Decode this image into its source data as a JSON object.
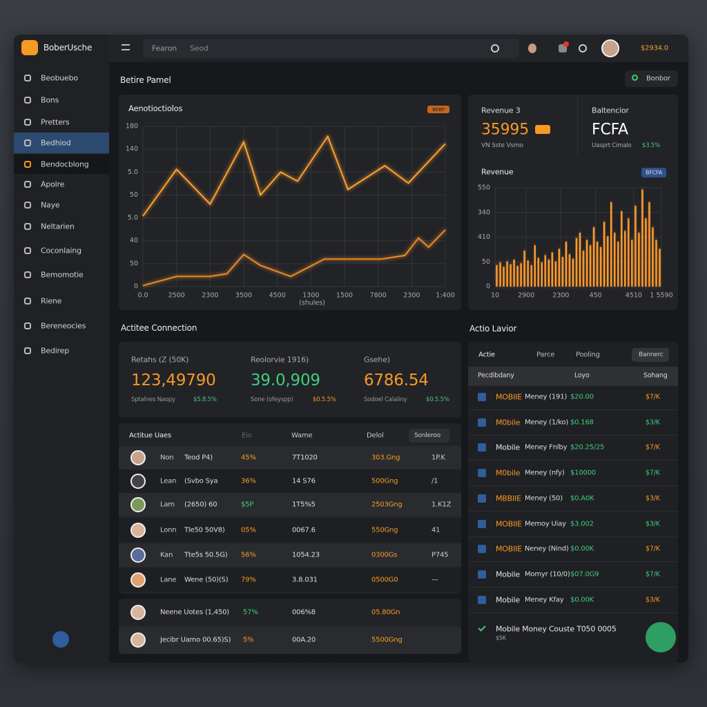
{
  "header": {
    "brand": "BoberUsche",
    "search_placeholder": "Fearon",
    "search_hint": "Seod",
    "balance": "$2934.0"
  },
  "sidebar": {
    "items": [
      "Beobuebo",
      "Bons",
      "Pretters",
      "Bedhiod",
      "Bendocblong",
      "Apolre",
      "Naye",
      "Neltarien",
      "Coconlaing",
      "Bemomotie",
      "Riene",
      "Bereneocies",
      "Bedirep"
    ],
    "active": 3,
    "accent": 4
  },
  "page": {
    "title": "Betire Pamel",
    "action": "Bonbor"
  },
  "summary": {
    "revenue_label": "Revenue 3",
    "revenue_value": "35995",
    "revenue_sub": "VN Sste Vsmo",
    "balance_label": "Baltencior",
    "balance_value": "FCFA",
    "balance_sub": "Uasprt Cimalo",
    "balance_change": "$3.5%"
  },
  "chart_data": [
    {
      "type": "line",
      "title": "Aenotioctiolos",
      "badge": "BEBP",
      "xlabel": "(shules)",
      "grid": true,
      "xlim": [
        0,
        9
      ],
      "xticks": [
        {
          "value": 0,
          "label": "0.0"
        },
        {
          "value": 1,
          "label": "2500"
        },
        {
          "value": 2,
          "label": "2300"
        },
        {
          "value": 3,
          "label": "3500"
        },
        {
          "value": 4,
          "label": "4500"
        },
        {
          "value": 5,
          "label": "1300"
        },
        {
          "value": 6,
          "label": "1500"
        },
        {
          "value": 7,
          "label": "7800"
        },
        {
          "value": 8,
          "label": "2300"
        },
        {
          "value": 9,
          "label": "1:400"
        }
      ],
      "ylim": [
        0,
        175
      ],
      "yticks": [
        0,
        {
          "value": 25,
          "label": "50"
        },
        {
          "value": 50,
          "label": "40"
        },
        {
          "value": 75,
          "label": "5.0"
        },
        {
          "value": 100,
          "label": "50"
        },
        {
          "value": 125,
          "label": "5.0"
        },
        {
          "value": 150,
          "label": "140"
        },
        {
          "value": 175,
          "label": "180"
        }
      ],
      "series": [
        {
          "color": "#ffa02e",
          "x": [
            0,
            1,
            2,
            3,
            3.5,
            4.1,
            4.6,
            5.5,
            6.1,
            7.2,
            7.9,
            9
          ],
          "values": [
            77,
            128,
            90,
            158,
            100,
            125,
            115,
            164,
            106,
            132,
            113,
            156
          ]
        },
        {
          "color": "#e8892a",
          "x": [
            0,
            1,
            2,
            2.5,
            3,
            3.5,
            4.4,
            5.4,
            7.1,
            7.8,
            8.2,
            8.5,
            9
          ],
          "values": [
            1,
            11,
            11,
            14,
            35,
            23,
            11,
            30,
            30,
            34,
            53,
            43,
            62
          ]
        }
      ]
    },
    {
      "type": "bar",
      "title": "Revenue",
      "badge": "BFCFA",
      "color": "#ff9a2a",
      "grid": true,
      "xlim": [
        0,
        48
      ],
      "xticks": [
        {
          "value": 0,
          "label": "10"
        },
        {
          "value": 9,
          "label": "2900"
        },
        {
          "value": 19,
          "label": "2300"
        },
        {
          "value": 29,
          "label": "450"
        },
        {
          "value": 40,
          "label": "4510"
        },
        {
          "value": 48,
          "label": "1 5590"
        }
      ],
      "ylim": [
        0,
        550
      ],
      "yticks": [
        0,
        {
          "value": 137.5,
          "label": "50"
        },
        {
          "value": 275,
          "label": "410"
        },
        {
          "value": 412.5,
          "label": "340"
        },
        550
      ],
      "values": [
        120,
        135,
        110,
        140,
        125,
        150,
        115,
        130,
        200,
        145,
        120,
        230,
        160,
        135,
        175,
        150,
        190,
        140,
        210,
        165,
        250,
        180,
        155,
        270,
        300,
        200,
        260,
        230,
        330,
        250,
        220,
        360,
        280,
        470,
        300,
        250,
        420,
        310,
        380,
        260,
        450,
        300,
        540,
        380,
        470,
        330,
        260,
        210
      ]
    }
  ],
  "connections": {
    "title": "Actitee Connection",
    "stats": [
      {
        "label": "Retahs (Z (50K)",
        "value": "123,49790",
        "sub": "Sptalnes Naopy",
        "change": "$5.8.5%"
      },
      {
        "label": "Reolorvie 1916)",
        "value": "39.0,909",
        "sub": "Sone (ofeyspp)",
        "change": "$0.5.5%"
      },
      {
        "label": "Gsehe)",
        "value": "6786.54",
        "sub": "Sodoel Calaliny",
        "change": "$0.5.5%"
      }
    ]
  },
  "users": {
    "title": "Actitue Uaes",
    "columns": [
      "Eio",
      "Wame",
      "Delol"
    ],
    "action": "Sonleroo",
    "rows": [
      [
        "Non",
        "Teod P4)",
        "45%",
        "7T1020",
        "303.Gng",
        "1P.K"
      ],
      [
        "Lean",
        "(Svbo Sya",
        "36%",
        "14 S76",
        "500Gng",
        "/1"
      ],
      [
        "Lam",
        "(2650) 60",
        "$5P",
        "1T5%5",
        "2503Gng",
        "1.K1Z"
      ],
      [
        "Lonn",
        "Tle50 50V8)",
        "05%",
        "0067.6",
        "550Gng",
        "41"
      ],
      [
        "Kan",
        "Tte5s 50.5G)",
        "56%",
        "1054.23",
        "0300Gs",
        "P745"
      ],
      [
        "Lane",
        "Wene (50)(S)",
        "79%",
        "3.8.031",
        "0500G0",
        "—"
      ]
    ],
    "extra_rows": [
      [
        "Neene Uotes (1,450)",
        "57%",
        "006%8",
        "05.80Gn"
      ],
      [
        "Jecibr Uamo 00.65)S)",
        "5%",
        "00A.20",
        "5500Gng"
      ]
    ]
  },
  "activity": {
    "title": "Actio Lavior",
    "tabs": [
      "Actie",
      "Parce",
      "Pooling"
    ],
    "action": "Bannerc",
    "columns": [
      "Pecdibdany",
      "Loyo",
      "Sohang"
    ],
    "rows": [
      {
        "title": "MOBIIE",
        "detail": "Meney (191)",
        "amount": "$20.00",
        "change": "$7/K",
        "highlight": true
      },
      {
        "title": "M0bile",
        "detail": "Meney (1/ko)",
        "amount": "$0.168",
        "change": "$3/K",
        "highlight": true
      },
      {
        "title": "Mobile",
        "detail": "Meney Fnlby",
        "amount": "$20.25/25",
        "change": "$7/K",
        "highlight": false
      },
      {
        "title": "M0bile",
        "detail": "Meney (nfy)",
        "amount": "$10000",
        "change": "$7/K",
        "highlight": true
      },
      {
        "title": "MBBIIE",
        "detail": "Meney (50)",
        "amount": "$0.A0K",
        "change": "$3/K",
        "highlight": true
      },
      {
        "title": "MOBIIE",
        "detail": "Memoy Uiay",
        "amount": "$3.002",
        "change": "$3/K",
        "highlight": true
      },
      {
        "title": "MOBIIE",
        "detail": "Neney (Nind)",
        "amount": "$0.00K",
        "change": "$7/K",
        "highlight": true
      },
      {
        "title": "Mobile",
        "detail": "Momyr (10/0)",
        "amount": "$07.0G9",
        "change": "$7/K",
        "highlight": false
      },
      {
        "title": "Mobile",
        "detail": "Meney Kfay",
        "amount": "$0.00K",
        "change": "$3/K",
        "highlight": false
      }
    ],
    "footer_title": "Mobile Money Couste T050 0005",
    "footer_sub": "$5K"
  }
}
